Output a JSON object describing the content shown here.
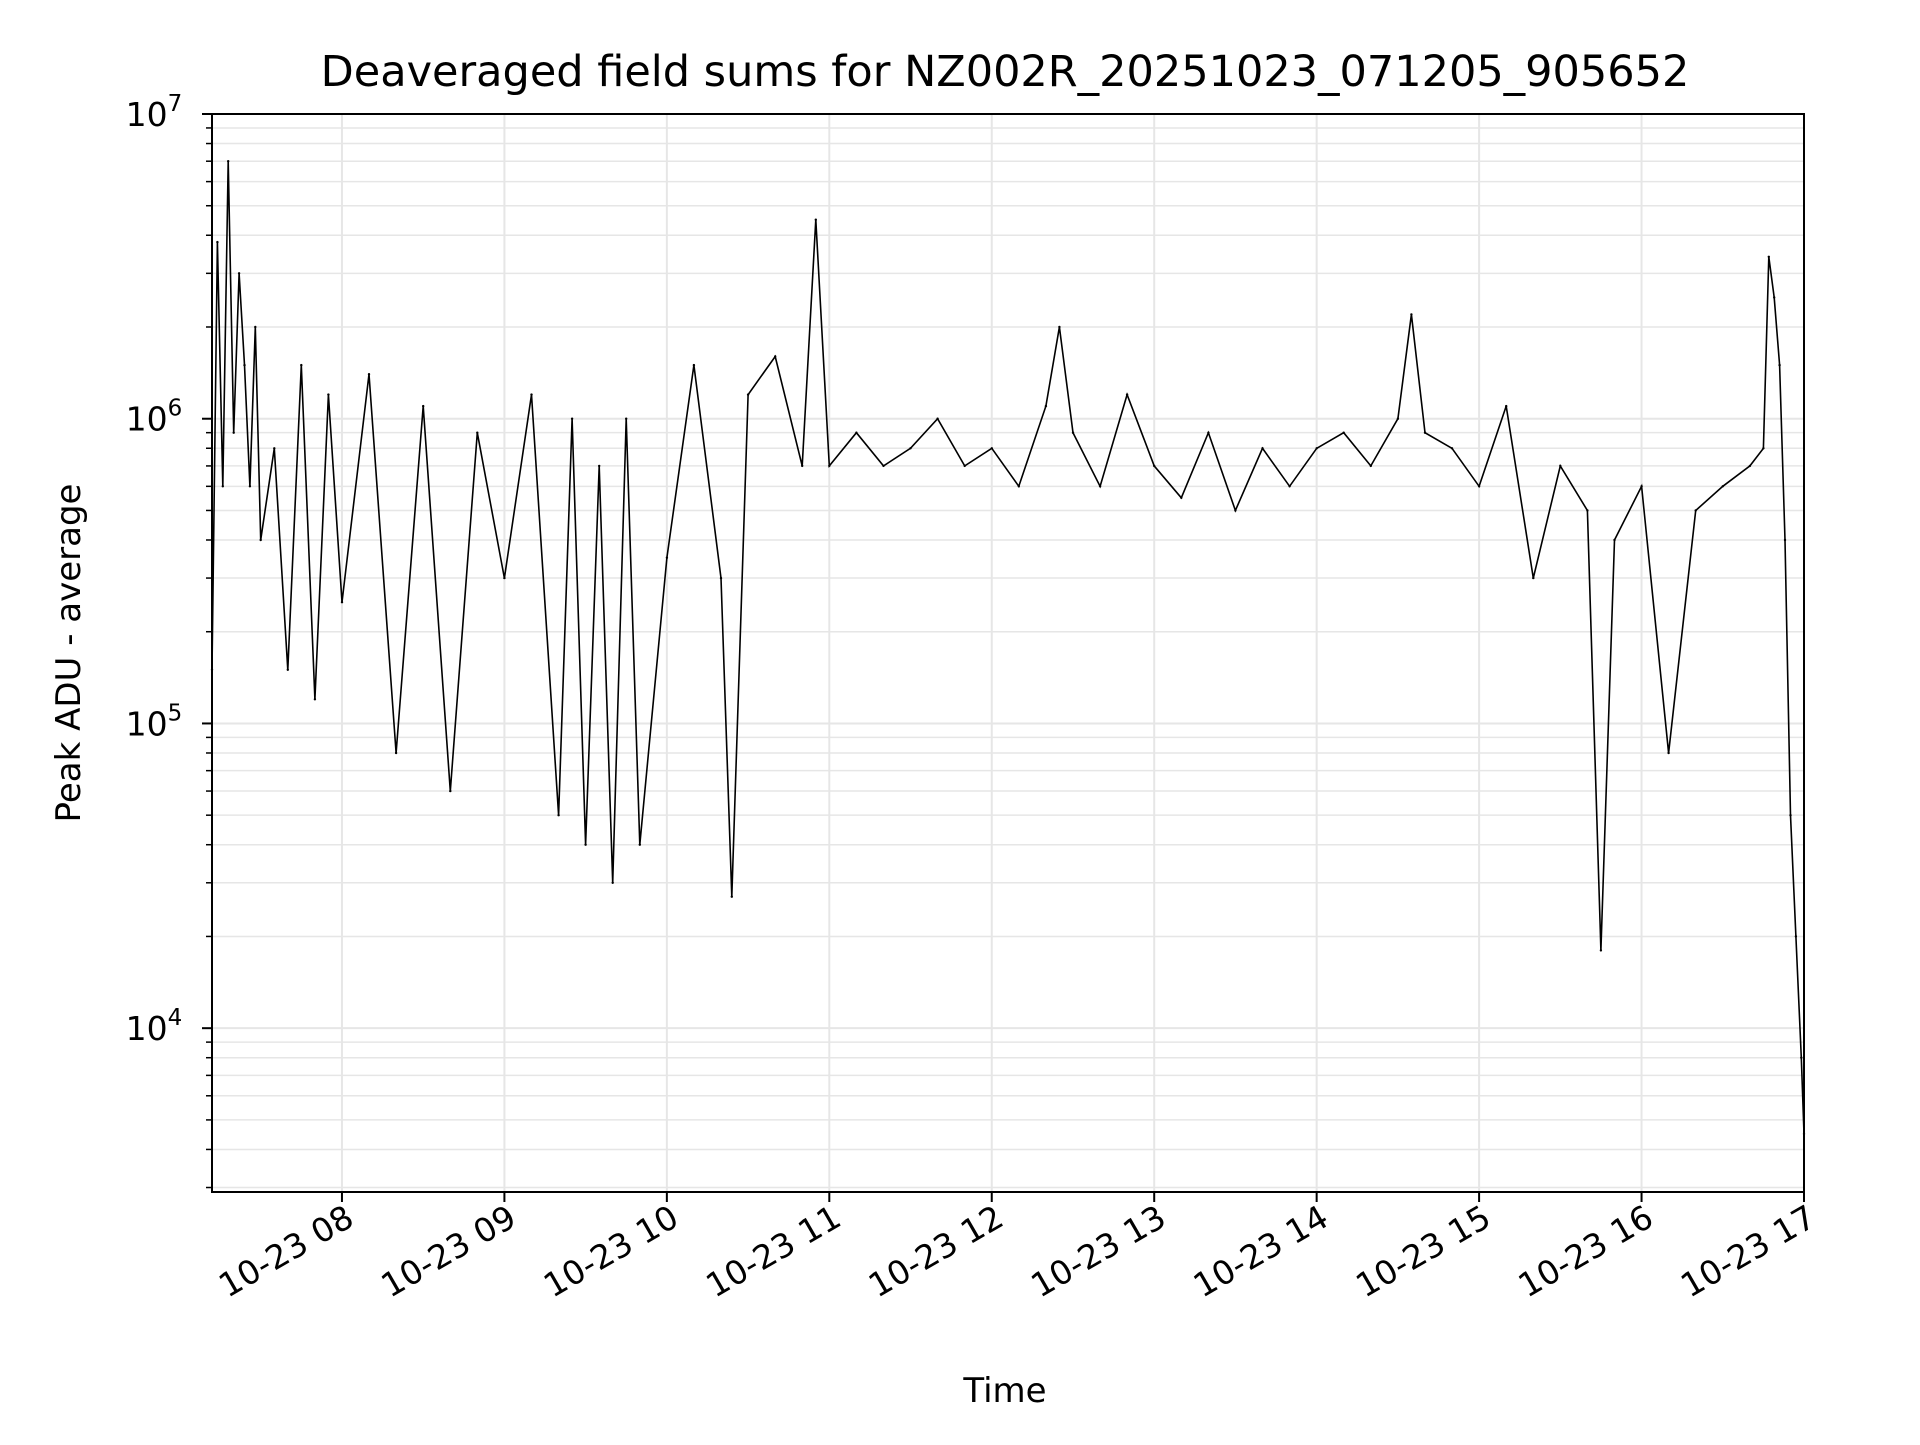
{
  "chart_data": {
    "type": "line",
    "title": "Deaveraged field sums for NZ002R_20251023_071205_905652",
    "xlabel": "Time",
    "ylabel": "Peak ADU - average",
    "y_scale": "log",
    "ylim": [
      2900,
      10000000
    ],
    "xlim": [
      "10-23 07:12",
      "10-23 17:00"
    ],
    "grid": true,
    "line_color": "#000000",
    "grid_color": "#e6e6e6",
    "x_ticks": [
      {
        "label": "10-23 08",
        "value": "10-23 08:00"
      },
      {
        "label": "10-23 09",
        "value": "10-23 09:00"
      },
      {
        "label": "10-23 10",
        "value": "10-23 10:00"
      },
      {
        "label": "10-23 11",
        "value": "10-23 11:00"
      },
      {
        "label": "10-23 12",
        "value": "10-23 12:00"
      },
      {
        "label": "10-23 13",
        "value": "10-23 13:00"
      },
      {
        "label": "10-23 14",
        "value": "10-23 14:00"
      },
      {
        "label": "10-23 15",
        "value": "10-23 15:00"
      },
      {
        "label": "10-23 16",
        "value": "10-23 16:00"
      },
      {
        "label": "10-23 17",
        "value": "10-23 17:00"
      }
    ],
    "y_ticks": [
      {
        "base": "10",
        "exp": "4",
        "value": 10000
      },
      {
        "base": "10",
        "exp": "5",
        "value": 100000
      },
      {
        "base": "10",
        "exp": "6",
        "value": 1000000
      },
      {
        "base": "10",
        "exp": "7",
        "value": 10000000
      }
    ],
    "series": [
      {
        "x": [
          "10-23 07:12",
          "10-23 07:14",
          "10-23 07:16",
          "10-23 07:18",
          "10-23 07:20",
          "10-23 07:22",
          "10-23 07:24",
          "10-23 07:26",
          "10-23 07:28",
          "10-23 07:30",
          "10-23 07:35",
          "10-23 07:40",
          "10-23 07:45",
          "10-23 07:50",
          "10-23 07:55",
          "10-23 08:00",
          "10-23 08:10",
          "10-23 08:20",
          "10-23 08:30",
          "10-23 08:40",
          "10-23 08:50",
          "10-23 09:00",
          "10-23 09:10",
          "10-23 09:20",
          "10-23 09:25",
          "10-23 09:30",
          "10-23 09:35",
          "10-23 09:40",
          "10-23 09:45",
          "10-23 09:50",
          "10-23 10:00",
          "10-23 10:10",
          "10-23 10:20",
          "10-23 10:24",
          "10-23 10:30",
          "10-23 10:40",
          "10-23 10:50",
          "10-23 10:55",
          "10-23 11:00",
          "10-23 11:10",
          "10-23 11:20",
          "10-23 11:30",
          "10-23 11:40",
          "10-23 11:50",
          "10-23 12:00",
          "10-23 12:10",
          "10-23 12:20",
          "10-23 12:25",
          "10-23 12:30",
          "10-23 12:40",
          "10-23 12:50",
          "10-23 13:00",
          "10-23 13:10",
          "10-23 13:20",
          "10-23 13:30",
          "10-23 13:40",
          "10-23 13:50",
          "10-23 14:00",
          "10-23 14:10",
          "10-23 14:20",
          "10-23 14:30",
          "10-23 14:35",
          "10-23 14:40",
          "10-23 14:50",
          "10-23 15:00",
          "10-23 15:10",
          "10-23 15:20",
          "10-23 15:30",
          "10-23 15:40",
          "10-23 15:45",
          "10-23 15:50",
          "10-23 16:00",
          "10-23 16:10",
          "10-23 16:20",
          "10-23 16:30",
          "10-23 16:40",
          "10-23 16:45",
          "10-23 16:47",
          "10-23 16:49",
          "10-23 16:51",
          "10-23 16:53",
          "10-23 16:55",
          "10-23 16:57",
          "10-23 16:59",
          "10-23 17:00"
        ],
        "y": [
          150000,
          3800000,
          600000,
          7000000,
          900000,
          3000000,
          1500000,
          600000,
          2000000,
          400000,
          800000,
          150000,
          1500000,
          120000,
          1200000,
          250000,
          1400000,
          80000,
          1100000,
          60000,
          900000,
          300000,
          1200000,
          50000,
          1000000,
          40000,
          700000,
          30000,
          1000000,
          40000,
          350000,
          1500000,
          300000,
          27000,
          1200000,
          1600000,
          700000,
          4500000,
          700000,
          900000,
          700000,
          800000,
          1000000,
          700000,
          800000,
          600000,
          1100000,
          2000000,
          900000,
          600000,
          1200000,
          700000,
          550000,
          900000,
          500000,
          800000,
          600000,
          800000,
          900000,
          700000,
          1000000,
          2200000,
          900000,
          800000,
          600000,
          1100000,
          300000,
          700000,
          500000,
          18000,
          400000,
          600000,
          80000,
          500000,
          600000,
          700000,
          800000,
          3400000,
          2500000,
          1500000,
          400000,
          50000,
          20000,
          8000,
          4500
        ]
      }
    ]
  }
}
